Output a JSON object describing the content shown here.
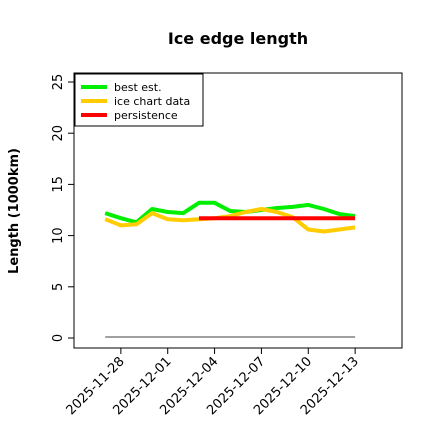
{
  "chart_data": {
    "type": "line",
    "title": "Ice edge length",
    "xlabel": "",
    "ylabel": "Length (1000km)",
    "ylim": [
      0,
      25
    ],
    "yticks": [
      0,
      5,
      10,
      15,
      20,
      25
    ],
    "xlim": [
      "2025-11-25",
      "2025-12-16"
    ],
    "xticks": [
      "2025-11-28",
      "2025-12-01",
      "2025-12-04",
      "2025-12-07",
      "2025-12-10",
      "2025-12-13"
    ],
    "grid": false,
    "legend_position": "top-left",
    "series": [
      {
        "name": "best est.",
        "color": "#00ee00",
        "x": [
          "2025-11-27",
          "2025-11-28",
          "2025-11-29",
          "2025-11-30",
          "2025-12-01",
          "2025-12-02",
          "2025-12-03",
          "2025-12-04",
          "2025-12-05",
          "2025-12-06",
          "2025-12-07",
          "2025-12-08",
          "2025-12-09",
          "2025-12-10",
          "2025-12-11",
          "2025-12-12",
          "2025-12-13"
        ],
        "values": [
          12.2,
          11.7,
          11.3,
          12.6,
          12.3,
          12.2,
          13.2,
          13.2,
          12.4,
          12.3,
          12.5,
          12.7,
          12.8,
          13.0,
          12.6,
          12.1,
          11.9
        ]
      },
      {
        "name": "ice chart data",
        "color": "#ffcc00",
        "x": [
          "2025-11-27",
          "2025-11-28",
          "2025-11-29",
          "2025-11-30",
          "2025-12-01",
          "2025-12-02",
          "2025-12-03",
          "2025-12-04",
          "2025-12-05",
          "2025-12-06",
          "2025-12-07",
          "2025-12-08",
          "2025-12-09",
          "2025-12-10",
          "2025-12-11",
          "2025-12-12",
          "2025-12-13"
        ],
        "values": [
          11.6,
          11.0,
          11.1,
          12.2,
          11.6,
          11.5,
          11.6,
          11.7,
          11.9,
          12.3,
          12.6,
          12.3,
          11.8,
          10.6,
          10.4,
          10.6,
          10.8
        ]
      },
      {
        "name": "persistence",
        "color": "#ff0000",
        "x": [
          "2025-12-03",
          "2025-12-13"
        ],
        "values": [
          11.7,
          11.7
        ]
      },
      {
        "name": "",
        "color": "#808080",
        "x": [
          "2025-11-27",
          "2025-12-13"
        ],
        "values": [
          0.1,
          0.1
        ]
      }
    ]
  }
}
